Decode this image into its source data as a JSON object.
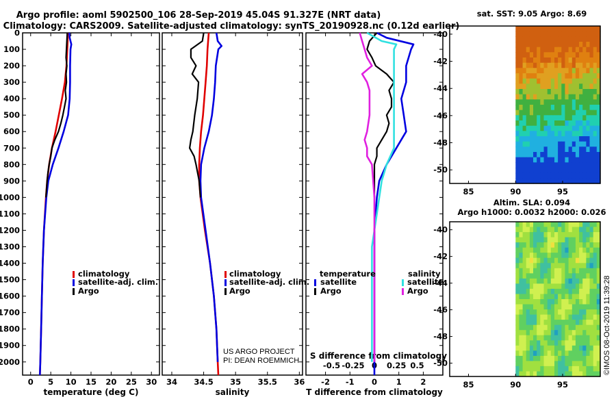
{
  "header": {
    "line1": "Argo profile: aoml 5902500_106 28-Sep-2019 45.04S 91.327E (NRT data)",
    "line2": "Climatology: CARS2009. Satellite-adjusted climatology: synTS_20190928.nc (0.12d earlier)"
  },
  "colors": {
    "climatology": "#e00000",
    "satellite": "#0000e0",
    "argo": "#000000",
    "t_satellite": "#0000e0",
    "s_satellite": "#30e0e0",
    "s_argo": "#e020e0"
  },
  "chart_data": [
    {
      "type": "line",
      "id": "temperature",
      "xlabel": "temperature (deg C)",
      "ylabel": "",
      "xlim": [
        -2,
        32
      ],
      "ylim": [
        2080,
        0
      ],
      "xticks": [
        0,
        5,
        10,
        15,
        20,
        25,
        30
      ],
      "yticks": [
        0,
        100,
        200,
        300,
        400,
        500,
        600,
        700,
        800,
        900,
        1000,
        1100,
        1200,
        1300,
        1400,
        1500,
        1600,
        1700,
        1800,
        1900,
        2000
      ],
      "legend": [
        "climatology",
        "satellite-adj. clim.",
        "Argo"
      ],
      "series": [
        {
          "name": "climatology",
          "pressure": [
            0,
            50,
            100,
            200,
            300,
            400,
            500,
            600,
            700,
            800,
            900,
            1000,
            1200,
            1400,
            1600,
            1800,
            2000,
            2080
          ],
          "values": [
            9.2,
            9.2,
            9.1,
            8.9,
            8.5,
            7.8,
            7.0,
            6.2,
            5.3,
            4.6,
            4.1,
            3.8,
            3.3,
            3.0,
            2.8,
            2.6,
            2.4,
            2.3
          ]
        },
        {
          "name": "satellite-adj. clim.",
          "pressure": [
            0,
            30,
            70,
            100,
            200,
            300,
            400,
            500,
            600,
            700,
            800,
            900,
            1000,
            1200,
            1400,
            1600,
            1800,
            2000,
            2080
          ],
          "values": [
            9.6,
            9.7,
            10.1,
            9.9,
            9.8,
            9.8,
            9.7,
            9.3,
            8.2,
            6.9,
            5.5,
            4.4,
            3.9,
            3.3,
            3.0,
            2.8,
            2.6,
            2.4,
            2.3
          ]
        },
        {
          "name": "Argo",
          "pressure": [
            0,
            50,
            100,
            150,
            200,
            250,
            300,
            350,
            400,
            450,
            500,
            550,
            600,
            650,
            700,
            750,
            800,
            850,
            900,
            1000
          ],
          "values": [
            9.1,
            9.0,
            8.9,
            8.8,
            9.0,
            8.8,
            8.9,
            8.6,
            8.8,
            8.4,
            8.0,
            7.5,
            6.9,
            6.0,
            5.3,
            5.0,
            4.6,
            4.3,
            4.1,
            3.8
          ]
        }
      ]
    },
    {
      "type": "line",
      "id": "salinity",
      "xlabel": "salinity",
      "xlim": [
        33.85,
        36.05
      ],
      "ylim": [
        2080,
        0
      ],
      "xticks": [
        34,
        34.5,
        35,
        35.5,
        36
      ],
      "legend": [
        "climatology",
        "satellite-adj. clim.",
        "Argo"
      ],
      "series": [
        {
          "name": "climatology",
          "pressure": [
            0,
            100,
            200,
            300,
            400,
            500,
            600,
            700,
            800,
            900,
            1000,
            1200,
            1400,
            1600,
            1800,
            2000,
            2080
          ],
          "values": [
            34.58,
            34.56,
            34.55,
            34.53,
            34.51,
            34.49,
            34.46,
            34.44,
            34.43,
            34.43,
            34.45,
            34.52,
            34.6,
            34.66,
            34.7,
            34.72,
            34.73
          ]
        },
        {
          "name": "satellite-adj. clim.",
          "pressure": [
            0,
            50,
            80,
            100,
            200,
            300,
            400,
            500,
            600,
            700,
            800,
            900,
            1000,
            1200,
            1400,
            1600,
            1800,
            2000
          ],
          "values": [
            34.7,
            34.72,
            34.78,
            34.73,
            34.69,
            34.68,
            34.66,
            34.63,
            34.58,
            34.51,
            34.46,
            34.45,
            34.46,
            34.53,
            34.6,
            34.66,
            34.7,
            34.72
          ]
        },
        {
          "name": "Argo",
          "pressure": [
            0,
            50,
            100,
            150,
            200,
            250,
            300,
            400,
            500,
            600,
            650,
            700,
            750,
            800,
            900,
            1000
          ],
          "values": [
            34.5,
            34.48,
            34.3,
            34.3,
            34.38,
            34.32,
            34.42,
            34.4,
            34.36,
            34.33,
            34.3,
            34.28,
            34.35,
            34.38,
            34.43,
            34.45
          ]
        }
      ]
    },
    {
      "type": "line",
      "id": "difference",
      "xlabel": "T difference from climatology",
      "xlabel_top": "S difference from climatology",
      "xlim": [
        -2.8,
        2.8
      ],
      "ylim": [
        2080,
        0
      ],
      "xticks": [
        -2,
        -1,
        0,
        1,
        2
      ],
      "xticks_top": [
        {
          "label": "-0.5",
          "value": -1.75
        },
        {
          "label": "-0.25",
          "value": -0.87
        },
        {
          "label": "0",
          "value": 0
        },
        {
          "label": "0.25",
          "value": 0.9
        },
        {
          "label": "0.5",
          "value": 1.75
        }
      ],
      "legend_left_title": "temperature",
      "legend_right_title": "salinity",
      "series": [
        {
          "name": "T satellite",
          "pressure": [
            0,
            30,
            70,
            100,
            200,
            300,
            400,
            500,
            600,
            700,
            800,
            900,
            1000,
            1200,
            1400,
            1600,
            1800,
            2000,
            2080
          ],
          "values": [
            0.1,
            0.5,
            1.6,
            1.5,
            1.3,
            1.3,
            1.1,
            1.2,
            1.3,
            0.9,
            0.5,
            0.2,
            0.1,
            0.0,
            0.0,
            0.0,
            0.0,
            0.0,
            0.0
          ]
        },
        {
          "name": "T Argo",
          "pressure": [
            0,
            50,
            100,
            150,
            200,
            250,
            300,
            350,
            400,
            450,
            500,
            550,
            600,
            650,
            700,
            750,
            800,
            850,
            900,
            1000
          ],
          "values": [
            0.1,
            -0.2,
            -0.3,
            -0.1,
            0.05,
            0.5,
            0.8,
            0.6,
            0.7,
            0.7,
            0.5,
            0.6,
            0.5,
            0.3,
            0.1,
            0.1,
            0.0,
            0.0,
            0.0,
            0.0
          ]
        },
        {
          "name": "S satellite",
          "pressure": [
            0,
            50,
            70,
            100,
            200,
            300,
            400,
            500,
            600,
            700,
            800,
            900,
            1000,
            1100,
            1200,
            1300,
            1400,
            1600,
            1800,
            2000
          ],
          "values": [
            -0.3,
            0.3,
            0.9,
            0.8,
            0.8,
            0.8,
            0.8,
            0.8,
            0.8,
            0.8,
            0.5,
            0.3,
            0.2,
            0.1,
            0.0,
            -0.1,
            -0.1,
            -0.1,
            -0.1,
            -0.1
          ]
        },
        {
          "name": "S Argo",
          "pressure": [
            0,
            50,
            100,
            150,
            200,
            250,
            300,
            350,
            400,
            500,
            600,
            650,
            700,
            750,
            800,
            900,
            1000,
            1200,
            1400,
            1600,
            1800,
            2000
          ],
          "values": [
            -0.6,
            -0.5,
            -0.4,
            -0.3,
            -0.1,
            -0.5,
            -0.3,
            -0.2,
            -0.2,
            -0.2,
            -0.3,
            -0.4,
            -0.3,
            -0.3,
            -0.1,
            -0.05,
            0.0,
            0.0,
            0.0,
            0.0,
            0.0,
            0.0
          ]
        }
      ]
    },
    {
      "type": "heatmap",
      "id": "sst_map",
      "title": "sat. SST: 9.05 Argo: 8.69",
      "xlim": [
        83,
        99
      ],
      "ylim": [
        -51,
        -39.4
      ],
      "xticks": [
        85,
        90,
        95
      ],
      "yticks": [
        -40,
        -42,
        -44,
        -46,
        -48,
        -50
      ]
    },
    {
      "type": "heatmap",
      "id": "sla_map",
      "title": "Altim. SLA: 0.094",
      "subtitle": "Argo h1000: 0.0032 h2000: 0.026",
      "xlim": [
        83,
        99
      ],
      "ylim": [
        -51,
        -39.4
      ],
      "xticks": [
        85,
        90,
        95
      ],
      "yticks": [
        -40,
        -42,
        -44,
        -46,
        -48,
        -50
      ]
    }
  ],
  "labels": {
    "climatology": "climatology",
    "satellite_adj": "satellite-adj. clim.",
    "argo": "Argo",
    "temperature": "temperature",
    "salinity": "salinity",
    "satellite": "satellite",
    "project1": "US ARGO PROJECT",
    "project2": "PI: DEAN ROEMMICH",
    "credit": "©IMOS 08-Oct-2019 11:39:28"
  }
}
